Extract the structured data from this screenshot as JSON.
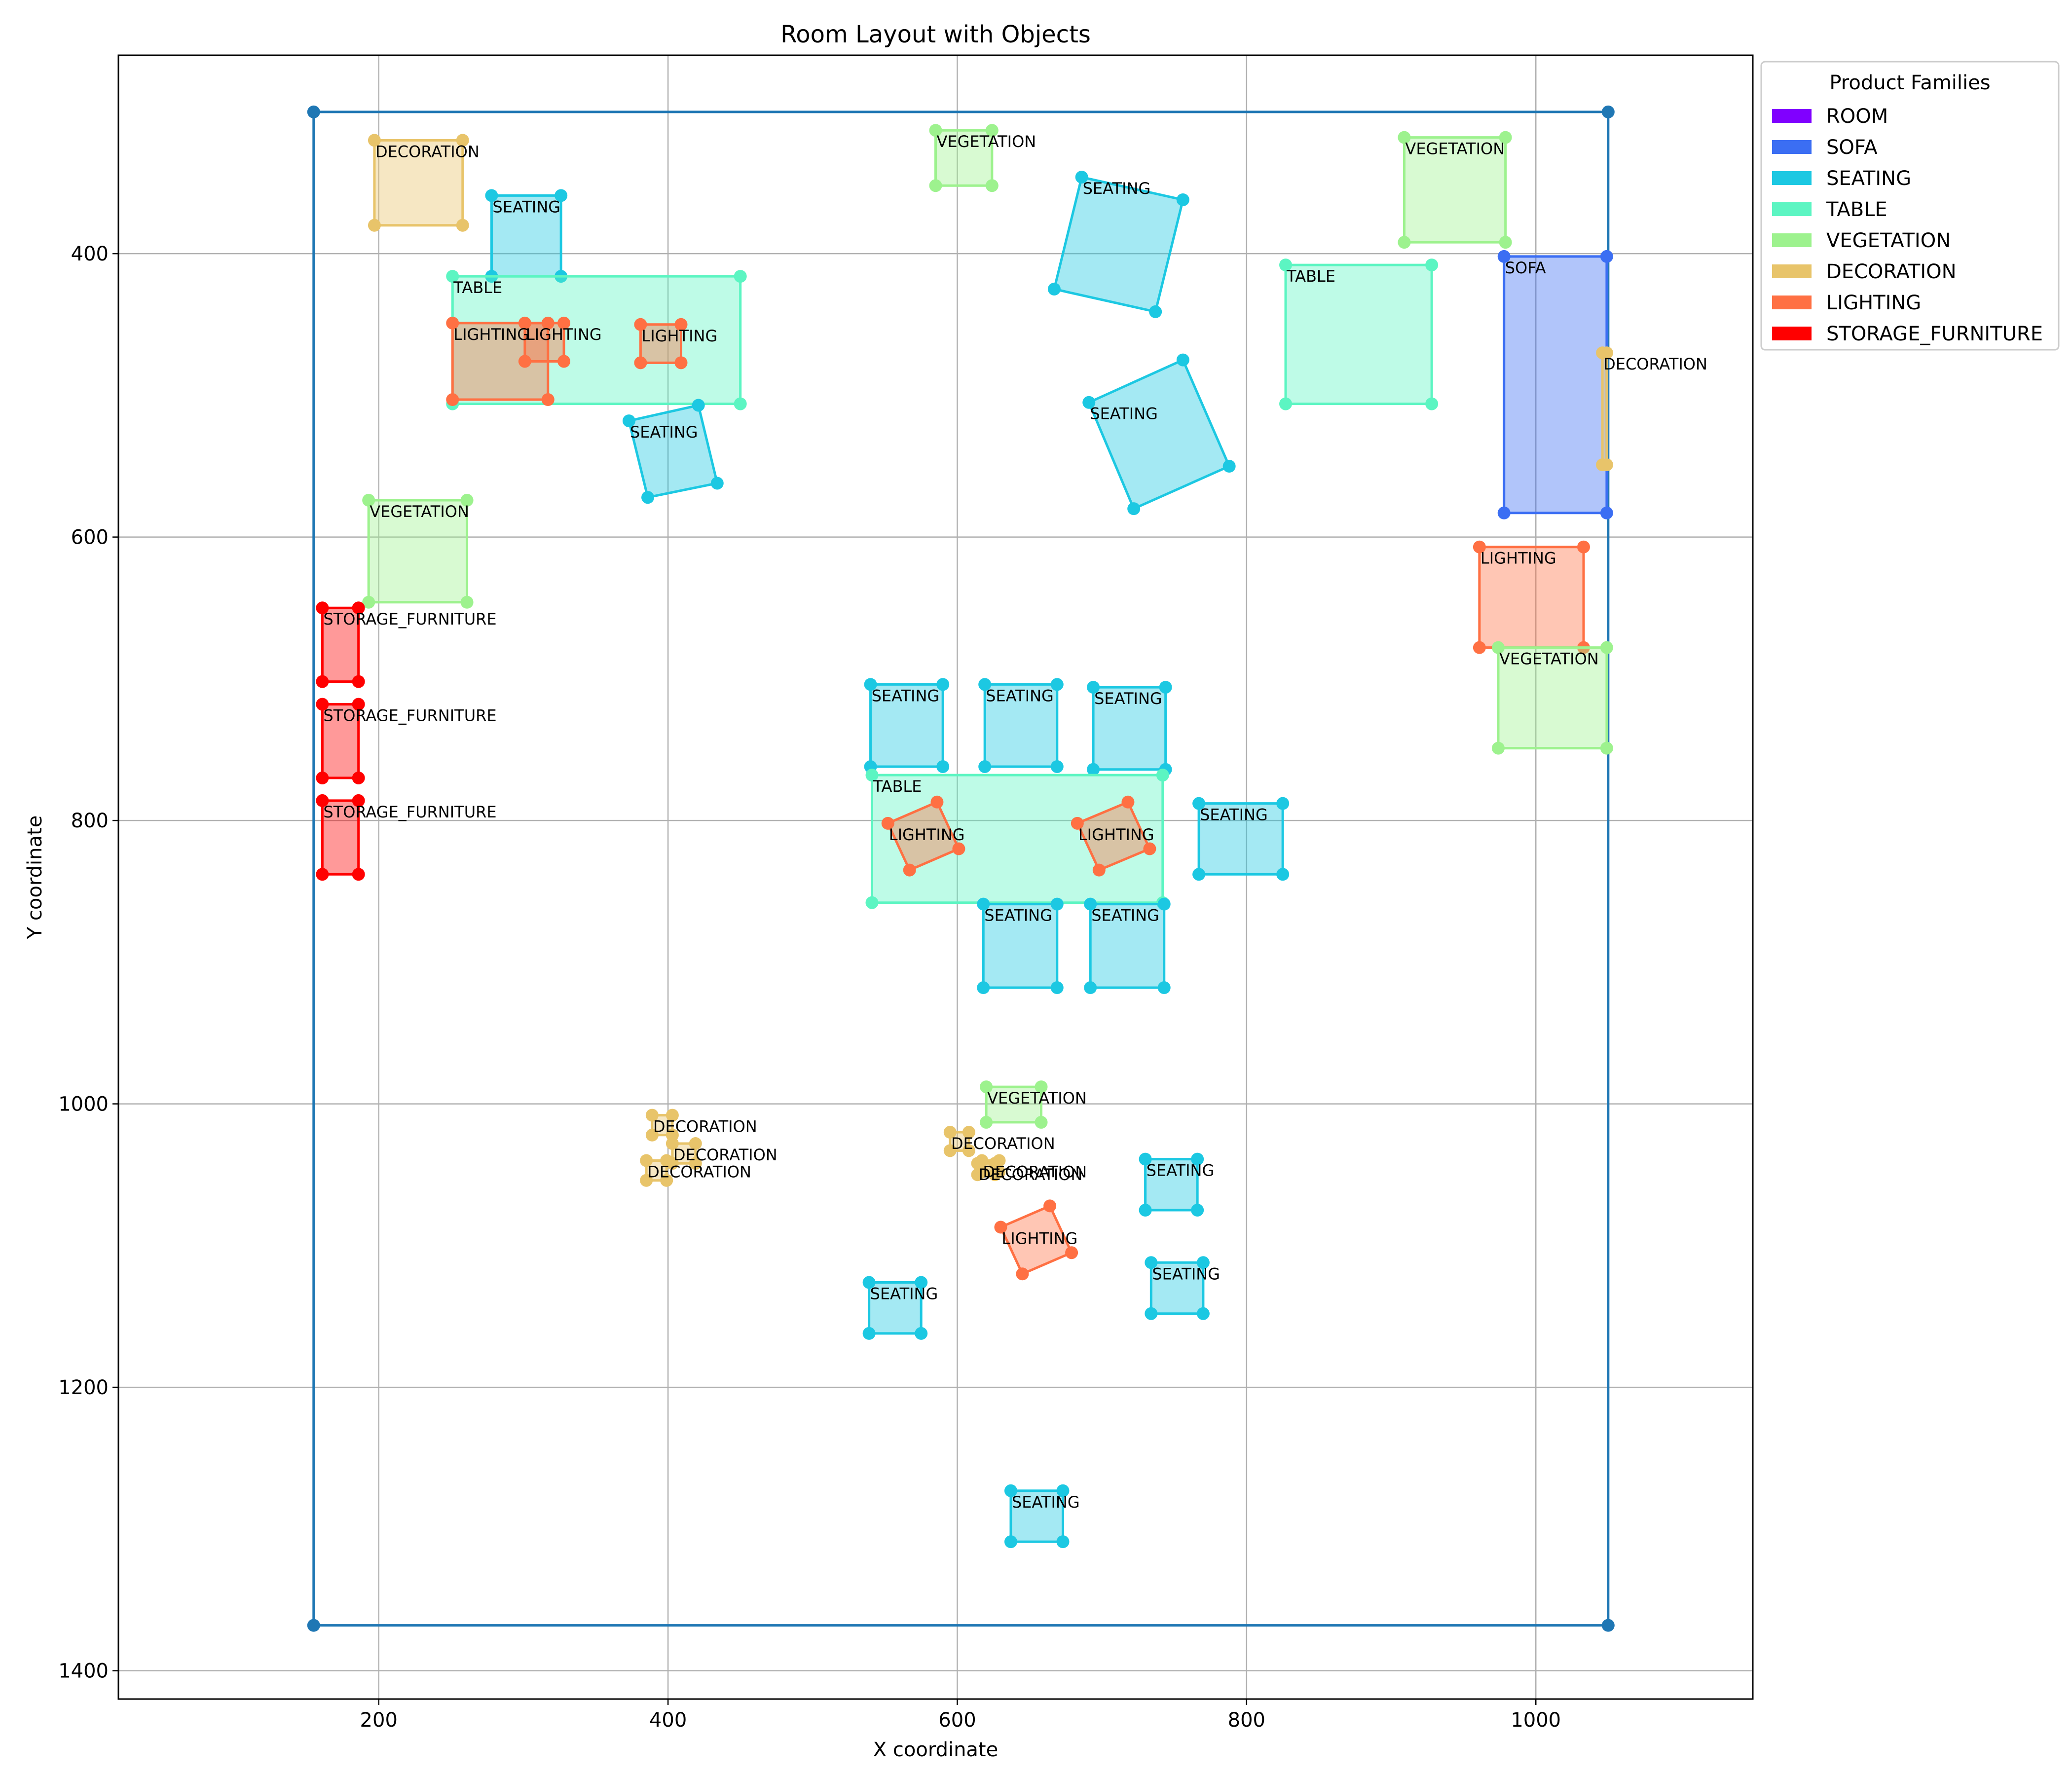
{
  "chart_data": {
    "type": "scatter",
    "title": "Room Layout with Objects",
    "xlabel": "X coordinate",
    "ylabel": "Y coordinate",
    "xlim": [
      20,
      1150
    ],
    "ylim": [
      1420,
      260
    ],
    "y_inverted": true,
    "grid": true,
    "x_ticks": [
      200,
      400,
      600,
      800,
      1000
    ],
    "y_ticks": [
      400,
      600,
      800,
      1000,
      1200,
      1400
    ],
    "legend": {
      "title": "Product Families",
      "placement": "outside-upper-right",
      "entries": [
        {
          "label": "ROOM",
          "color": "#8000ff"
        },
        {
          "label": "SOFA",
          "color": "#3b6ef3"
        },
        {
          "label": "SEATING",
          "color": "#1cc8e2"
        },
        {
          "label": "TABLE",
          "color": "#5cf5c2"
        },
        {
          "label": "VEGETATION",
          "color": "#9df28e"
        },
        {
          "label": "DECORATION",
          "color": "#e8c46a"
        },
        {
          "label": "LIGHTING",
          "color": "#ff7043"
        },
        {
          "label": "STORAGE_FURNITURE",
          "color": "#ff0000"
        }
      ]
    },
    "room": {
      "color": "#1f77b4",
      "points": [
        [
          155,
          300
        ],
        [
          1050,
          300
        ],
        [
          1050,
          1368
        ],
        [
          155,
          1368
        ]
      ]
    },
    "objects": [
      {
        "family": "DECORATION",
        "label": "DECORATION",
        "points": [
          [
            197,
            320
          ],
          [
            258,
            320
          ],
          [
            258,
            380
          ],
          [
            197,
            380
          ]
        ]
      },
      {
        "family": "SEATING",
        "label": "SEATING",
        "points": [
          [
            278,
            359
          ],
          [
            326,
            359
          ],
          [
            326,
            416
          ],
          [
            278,
            416
          ]
        ]
      },
      {
        "family": "TABLE",
        "label": "TABLE",
        "points": [
          [
            251,
            416
          ],
          [
            450,
            416
          ],
          [
            450,
            506
          ],
          [
            251,
            506
          ]
        ]
      },
      {
        "family": "LIGHTING",
        "label": "LIGHTING",
        "points": [
          [
            251,
            449
          ],
          [
            317,
            449
          ],
          [
            317,
            503
          ],
          [
            251,
            503
          ]
        ]
      },
      {
        "family": "LIGHTING",
        "label": "LIGHTING",
        "points": [
          [
            301,
            449
          ],
          [
            328,
            449
          ],
          [
            328,
            476
          ],
          [
            301,
            476
          ]
        ]
      },
      {
        "family": "LIGHTING",
        "label": "LIGHTING",
        "points": [
          [
            381,
            450
          ],
          [
            409,
            450
          ],
          [
            409,
            477
          ],
          [
            381,
            477
          ]
        ]
      },
      {
        "family": "SEATING",
        "label": "SEATING",
        "points": [
          [
            373,
            518
          ],
          [
            421,
            507
          ],
          [
            434,
            562
          ],
          [
            386,
            572
          ]
        ]
      },
      {
        "family": "VEGETATION",
        "label": "VEGETATION",
        "points": [
          [
            585,
            313
          ],
          [
            624,
            313
          ],
          [
            624,
            352
          ],
          [
            585,
            352
          ]
        ]
      },
      {
        "family": "SEATING",
        "label": "SEATING",
        "points": [
          [
            686,
            346
          ],
          [
            756,
            362
          ],
          [
            737,
            441
          ],
          [
            667,
            425
          ]
        ]
      },
      {
        "family": "SEATING",
        "label": "SEATING",
        "points": [
          [
            691,
            505
          ],
          [
            756,
            475
          ],
          [
            788,
            550
          ],
          [
            722,
            580
          ]
        ]
      },
      {
        "family": "VEGETATION",
        "label": "VEGETATION",
        "points": [
          [
            909,
            318
          ],
          [
            979,
            318
          ],
          [
            979,
            392
          ],
          [
            909,
            392
          ]
        ]
      },
      {
        "family": "TABLE",
        "label": "TABLE",
        "points": [
          [
            827,
            408
          ],
          [
            928,
            408
          ],
          [
            928,
            506
          ],
          [
            827,
            506
          ]
        ]
      },
      {
        "family": "SOFA",
        "label": "SOFA",
        "points": [
          [
            978,
            402
          ],
          [
            1049,
            402
          ],
          [
            1049,
            583
          ],
          [
            978,
            583
          ]
        ]
      },
      {
        "family": "DECORATION",
        "label": "DECORATION",
        "points": [
          [
            1046,
            470
          ],
          [
            1049,
            470
          ],
          [
            1049,
            549
          ],
          [
            1046,
            549
          ]
        ]
      },
      {
        "family": "LIGHTING",
        "label": "LIGHTING",
        "points": [
          [
            961,
            607
          ],
          [
            1033,
            607
          ],
          [
            1033,
            678
          ],
          [
            961,
            678
          ]
        ]
      },
      {
        "family": "VEGETATION",
        "label": "VEGETATION",
        "points": [
          [
            974,
            678
          ],
          [
            1049,
            678
          ],
          [
            1049,
            749
          ],
          [
            974,
            749
          ]
        ]
      },
      {
        "family": "VEGETATION",
        "label": "VEGETATION",
        "points": [
          [
            193,
            574
          ],
          [
            261,
            574
          ],
          [
            261,
            646
          ],
          [
            193,
            646
          ]
        ]
      },
      {
        "family": "STORAGE_FURNITURE",
        "label": "STORAGE_FURNITURE",
        "points": [
          [
            161,
            650
          ],
          [
            186,
            650
          ],
          [
            186,
            702
          ],
          [
            161,
            702
          ]
        ]
      },
      {
        "family": "STORAGE_FURNITURE",
        "label": "STORAGE_FURNITURE",
        "points": [
          [
            161,
            718
          ],
          [
            186,
            718
          ],
          [
            186,
            770
          ],
          [
            161,
            770
          ]
        ]
      },
      {
        "family": "STORAGE_FURNITURE",
        "label": "STORAGE_FURNITURE",
        "points": [
          [
            161,
            786
          ],
          [
            186,
            786
          ],
          [
            186,
            838
          ],
          [
            161,
            838
          ]
        ]
      },
      {
        "family": "SEATING",
        "label": "SEATING",
        "points": [
          [
            540,
            704
          ],
          [
            590,
            704
          ],
          [
            590,
            762
          ],
          [
            540,
            762
          ]
        ]
      },
      {
        "family": "SEATING",
        "label": "SEATING",
        "points": [
          [
            619,
            704
          ],
          [
            669,
            704
          ],
          [
            669,
            762
          ],
          [
            619,
            762
          ]
        ]
      },
      {
        "family": "SEATING",
        "label": "SEATING",
        "points": [
          [
            694,
            706
          ],
          [
            744,
            706
          ],
          [
            744,
            764
          ],
          [
            694,
            764
          ]
        ]
      },
      {
        "family": "TABLE",
        "label": "TABLE",
        "points": [
          [
            541,
            768
          ],
          [
            742,
            768
          ],
          [
            742,
            858
          ],
          [
            541,
            858
          ]
        ]
      },
      {
        "family": "LIGHTING",
        "label": "LIGHTING",
        "points": [
          [
            552,
            802
          ],
          [
            586,
            787
          ],
          [
            601,
            820
          ],
          [
            567,
            835
          ]
        ]
      },
      {
        "family": "LIGHTING",
        "label": "LIGHTING",
        "points": [
          [
            683,
            802
          ],
          [
            718,
            787
          ],
          [
            733,
            820
          ],
          [
            698,
            835
          ]
        ]
      },
      {
        "family": "SEATING",
        "label": "SEATING",
        "points": [
          [
            767,
            788
          ],
          [
            825,
            788
          ],
          [
            825,
            838
          ],
          [
            767,
            838
          ]
        ]
      },
      {
        "family": "SEATING",
        "label": "SEATING",
        "points": [
          [
            618,
            859
          ],
          [
            669,
            859
          ],
          [
            669,
            918
          ],
          [
            618,
            918
          ]
        ]
      },
      {
        "family": "SEATING",
        "label": "SEATING",
        "points": [
          [
            692,
            859
          ],
          [
            743,
            859
          ],
          [
            743,
            918
          ],
          [
            692,
            918
          ]
        ]
      },
      {
        "family": "VEGETATION",
        "label": "VEGETATION",
        "points": [
          [
            620,
            988
          ],
          [
            658,
            988
          ],
          [
            658,
            1013
          ],
          [
            620,
            1013
          ]
        ]
      },
      {
        "family": "DECORATION",
        "label": "DECORATION",
        "points": [
          [
            389,
            1008
          ],
          [
            403,
            1008
          ],
          [
            403,
            1022
          ],
          [
            389,
            1022
          ]
        ]
      },
      {
        "family": "DECORATION",
        "label": "DECORATION",
        "points": [
          [
            403,
            1028
          ],
          [
            419,
            1028
          ],
          [
            419,
            1042
          ],
          [
            403,
            1042
          ]
        ]
      },
      {
        "family": "DECORATION",
        "label": "DECORATION",
        "points": [
          [
            385,
            1040
          ],
          [
            399,
            1040
          ],
          [
            399,
            1054
          ],
          [
            385,
            1054
          ]
        ]
      },
      {
        "family": "DECORATION",
        "label": "DECORATION",
        "points": [
          [
            595,
            1020
          ],
          [
            608,
            1020
          ],
          [
            608,
            1033
          ],
          [
            595,
            1033
          ]
        ]
      },
      {
        "family": "DECORATION",
        "label": "DECORATION",
        "points": [
          [
            617,
            1040
          ],
          [
            629,
            1040
          ],
          [
            629,
            1048
          ],
          [
            617,
            1048
          ]
        ]
      },
      {
        "family": "DECORATION",
        "label": "DECORATION",
        "points": [
          [
            614,
            1042
          ],
          [
            626,
            1042
          ],
          [
            626,
            1050
          ],
          [
            614,
            1050
          ]
        ]
      },
      {
        "family": "SEATING",
        "label": "SEATING",
        "points": [
          [
            730,
            1039
          ],
          [
            766,
            1039
          ],
          [
            766,
            1075
          ],
          [
            730,
            1075
          ]
        ]
      },
      {
        "family": "LIGHTING",
        "label": "LIGHTING",
        "points": [
          [
            630,
            1087
          ],
          [
            664,
            1072
          ],
          [
            679,
            1105
          ],
          [
            645,
            1120
          ]
        ]
      },
      {
        "family": "SEATING",
        "label": "SEATING",
        "points": [
          [
            734,
            1112
          ],
          [
            770,
            1112
          ],
          [
            770,
            1148
          ],
          [
            734,
            1148
          ]
        ]
      },
      {
        "family": "SEATING",
        "label": "SEATING",
        "points": [
          [
            539,
            1126
          ],
          [
            575,
            1126
          ],
          [
            575,
            1162
          ],
          [
            539,
            1162
          ]
        ]
      },
      {
        "family": "SEATING",
        "label": "SEATING",
        "points": [
          [
            637,
            1273
          ],
          [
            673,
            1273
          ],
          [
            673,
            1309
          ],
          [
            637,
            1309
          ]
        ]
      }
    ]
  }
}
